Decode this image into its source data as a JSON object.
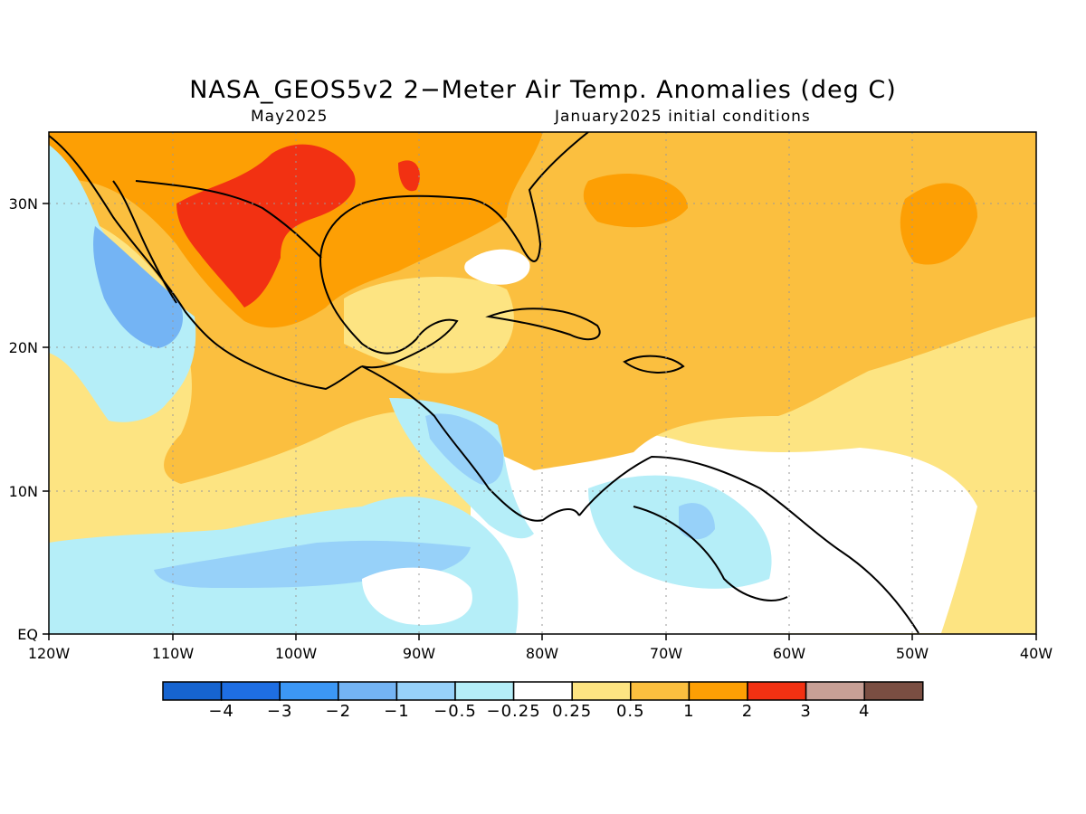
{
  "header": {
    "title": "NASA_GEOS5v2 2−Meter Air Temp. Anomalies (deg C)",
    "subtitle_left": "May2025",
    "subtitle_right": "January2025 initial conditions"
  },
  "map": {
    "lon_ticks": [
      "120W",
      "110W",
      "100W",
      "90W",
      "80W",
      "70W",
      "60W",
      "50W",
      "40W"
    ],
    "lat_ticks": [
      "EQ",
      "10N",
      "20N",
      "30N"
    ],
    "gridlines": true,
    "gridline_style": "dotted"
  },
  "colors": {
    "deep_red": "#f23112",
    "orange": "#fd9f04",
    "light_orange": "#fbbf3f",
    "pale_yellow": "#fde482",
    "white": "#ffffff",
    "light_cyan": "#b5eef8",
    "light_blue": "#97d1f9",
    "med_blue": "#74b4f4",
    "blue": "#3c97f5",
    "dark_blue": "#1e6ee3"
  },
  "colorbar": {
    "boxes": [
      "#1664d0",
      "#1e6ee3",
      "#3c97f5",
      "#74b4f4",
      "#97d1f9",
      "#b5eef8",
      "#ffffff",
      "#fde482",
      "#fbbf3f",
      "#fd9f04",
      "#f23112",
      "#c8a096",
      "#7a4e42"
    ],
    "labels": [
      "−4",
      "−3",
      "−2",
      "−1",
      "−0.5",
      "−0.25",
      "0.25",
      "0.5",
      "1",
      "2",
      "3",
      "4"
    ]
  }
}
